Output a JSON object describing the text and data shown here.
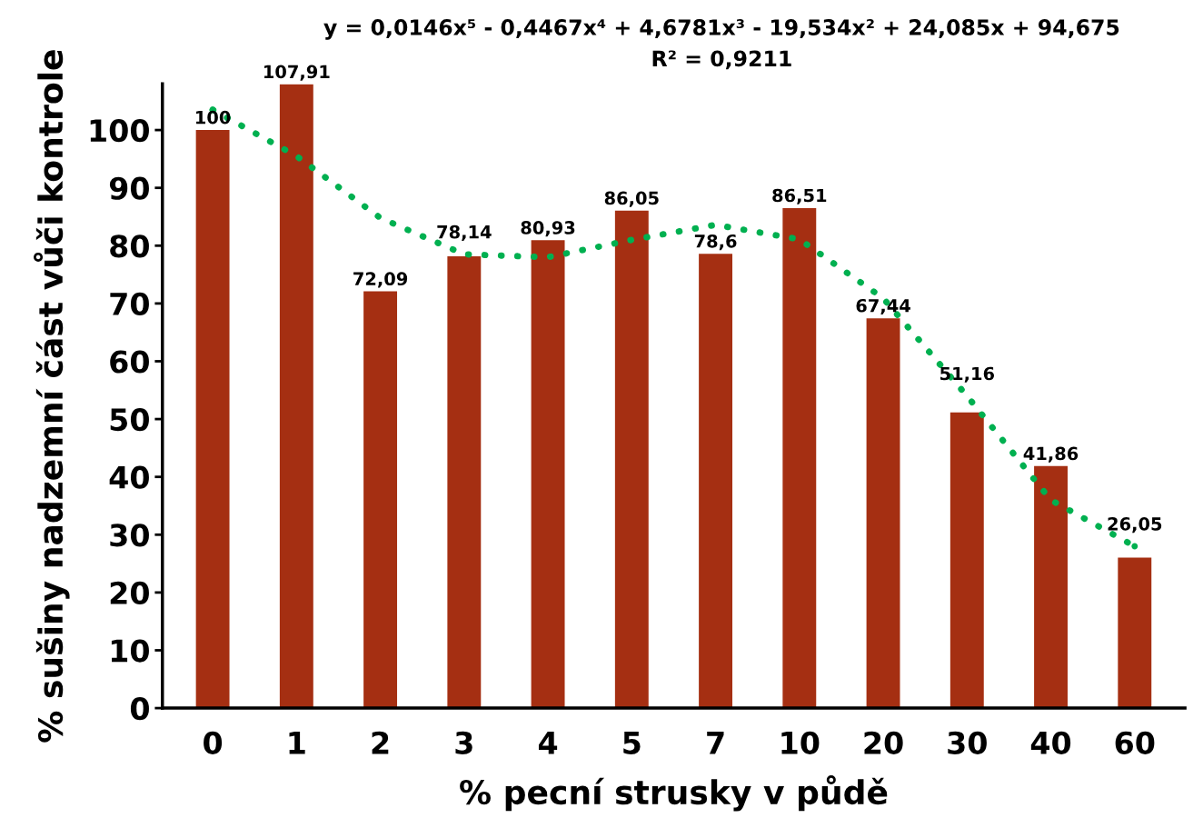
{
  "chart_data": {
    "type": "bar",
    "title": "y = 0,0146x⁵ - 0,4467x⁴ + 4,6781x³ - 19,534x² + 24,085x + 94,675",
    "subtitle": "R² = 0,9211",
    "xlabel": "% pecní strusky v půdě",
    "ylabel": "% sušiny nadzemní část vůči kontrole",
    "categories": [
      "0",
      "1",
      "2",
      "3",
      "4",
      "5",
      "7",
      "10",
      "20",
      "30",
      "40",
      "60"
    ],
    "series": [
      {
        "color": "#a52f12",
        "values": [
          100,
          107.91,
          72.09,
          78.14,
          80.93,
          86.05,
          78.6,
          86.51,
          67.44,
          51.16,
          41.86,
          26.05
        ],
        "value_labels": [
          "100",
          "107,91",
          "72,09",
          "78,14",
          "80,93",
          "86,05",
          "78,6",
          "86,51",
          "67,44",
          "51,16",
          "41,86",
          "26,05"
        ]
      },
      {
        "type": "line",
        "color": "#00b050",
        "line_style": "dotted",
        "values": [
          103.5,
          95.5,
          84.8,
          78.5,
          78,
          81,
          83.6,
          81.1,
          70.9,
          54,
          36,
          28
        ]
      }
    ],
    "ylim": [
      0,
      108
    ],
    "yticks": [
      0,
      10,
      20,
      30,
      40,
      50,
      60,
      70,
      80,
      90,
      100
    ],
    "grid": false,
    "legend": false
  }
}
